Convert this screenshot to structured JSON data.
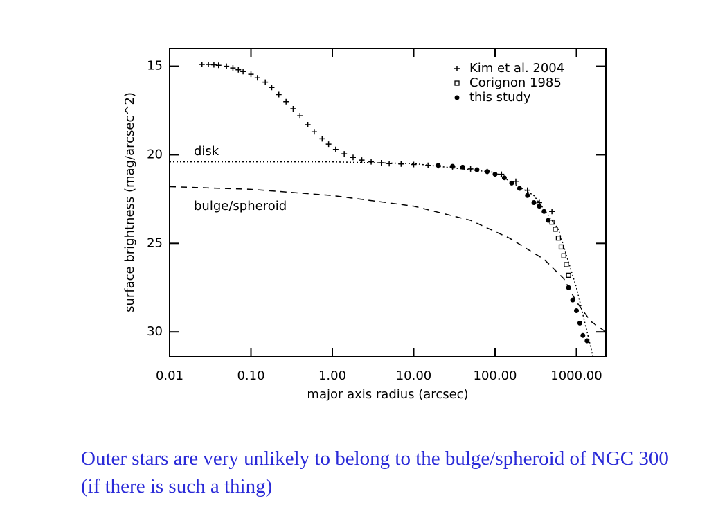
{
  "chart_data": {
    "type": "scatter",
    "x_label": "major axis radius (arcsec)",
    "y_label": "surface brightness  (mag/arcsec^2)",
    "x_log": true,
    "xlim": [
      0.01,
      2300
    ],
    "xticks": [
      0.01,
      {
        "value": 0.1,
        "label": "0.10"
      },
      {
        "value": 1,
        "label": "1.00"
      },
      {
        "value": 10,
        "label": "10.00"
      },
      {
        "value": 100,
        "label": "100.00"
      },
      {
        "value": 1000,
        "label": "1000.00"
      }
    ],
    "ylim": [
      31.4,
      14
    ],
    "yticks": [
      15,
      20,
      25,
      30
    ],
    "legend_position": "upper right",
    "color": "#000000",
    "series": [
      {
        "name": "Kim et al. 2004",
        "marker": "plus",
        "legend": true,
        "x": [
          0.025,
          0.03,
          0.035,
          0.04,
          0.05,
          0.06,
          0.07,
          0.08,
          0.1,
          0.12,
          0.15,
          0.18,
          0.22,
          0.27,
          0.33,
          0.4,
          0.5,
          0.6,
          0.75,
          0.9,
          1.1,
          1.4,
          1.8,
          2.3,
          3,
          4,
          5,
          7,
          10,
          15,
          20,
          30,
          50,
          80,
          120,
          180,
          250,
          350,
          500
        ],
        "values": [
          14.9,
          14.9,
          14.92,
          14.95,
          15.0,
          15.1,
          15.2,
          15.3,
          15.45,
          15.65,
          15.9,
          16.2,
          16.6,
          17.0,
          17.4,
          17.8,
          18.3,
          18.7,
          19.1,
          19.4,
          19.7,
          19.95,
          20.15,
          20.3,
          20.4,
          20.45,
          20.5,
          20.52,
          20.55,
          20.6,
          20.62,
          20.68,
          20.8,
          20.95,
          21.1,
          21.5,
          22.0,
          22.7,
          23.2
        ]
      },
      {
        "name": "Corignon 1985",
        "marker": "square",
        "legend": true,
        "x": [
          500,
          550,
          600,
          650,
          700,
          750,
          800
        ],
        "values": [
          23.8,
          24.2,
          24.7,
          25.2,
          25.7,
          26.2,
          26.8
        ]
      },
      {
        "name": "this study",
        "marker": "dot",
        "legend": true,
        "x": [
          20,
          30,
          40,
          60,
          80,
          100,
          130,
          160,
          200,
          250,
          300,
          350,
          400,
          450,
          800,
          900,
          1000,
          1100,
          1200,
          1350
        ],
        "values": [
          20.6,
          20.65,
          20.7,
          20.85,
          20.95,
          21.1,
          21.3,
          21.6,
          21.9,
          22.3,
          22.7,
          22.9,
          23.2,
          23.7,
          27.5,
          28.2,
          28.8,
          29.5,
          30.2,
          30.5
        ]
      },
      {
        "name": "disk",
        "marker": "dotted",
        "legend": false,
        "x": [
          0.01,
          1,
          10,
          100,
          300,
          600,
          1000,
          1600
        ],
        "values": [
          20.4,
          20.4,
          20.5,
          21.0,
          22.3,
          24.2,
          27.5,
          31.4
        ]
      },
      {
        "name": "bulge/spheroid",
        "marker": "dashed",
        "legend": false,
        "x": [
          0.01,
          0.1,
          1,
          10,
          50,
          150,
          400,
          700,
          1000,
          1500,
          2300
        ],
        "values": [
          21.8,
          21.95,
          22.3,
          22.9,
          23.7,
          24.7,
          25.9,
          27.0,
          28.3,
          29.4,
          30.0
        ]
      }
    ]
  },
  "caption": "Outer stars are very unlikely to belong to the bulge/spheroid of NGC 300  (if there is such a thing)"
}
